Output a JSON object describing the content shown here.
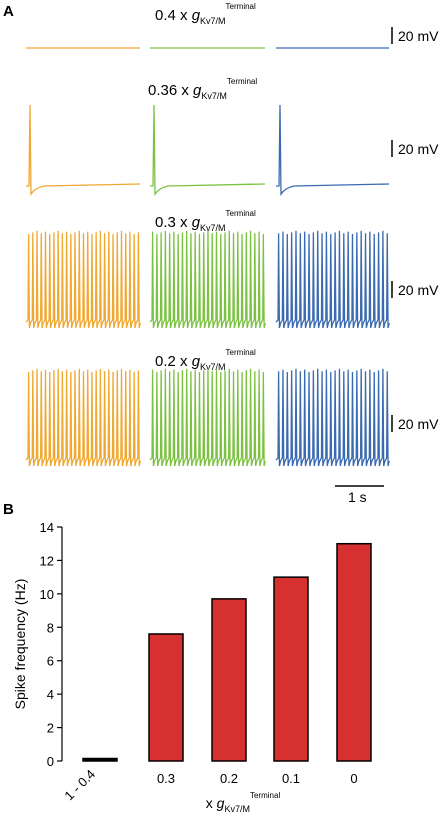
{
  "panel_a": {
    "letter": "A",
    "colors": [
      "#f0a830",
      "#7cc242",
      "#3a6ab0"
    ],
    "rows": [
      {
        "prefix": "0.4 x ",
        "g": "g",
        "sub": "Kv7/M",
        "sup": "Terminal",
        "scale_label": "20 mV",
        "pattern": "flat"
      },
      {
        "prefix": "0.36 x ",
        "g": "g",
        "sub": "Kv7/M",
        "sup": "Terminal",
        "scale_label": "20 mV",
        "pattern": "single"
      },
      {
        "prefix": "0.3 x ",
        "g": "g",
        "sub": "Kv7/M",
        "sup": "Terminal",
        "scale_label": "20 mV",
        "pattern": "train"
      },
      {
        "prefix": "0.2 x ",
        "g": "g",
        "sub": "Kv7/M",
        "sup": "Terminal",
        "scale_label": "20 mV",
        "pattern": "train"
      }
    ],
    "time_scale_label": "1 s"
  },
  "panel_b": {
    "letter": "B",
    "bar_color": "#d63031",
    "chart_data": {
      "type": "bar",
      "categories": [
        "1 - 0.4",
        "0.3",
        "0.2",
        "0.1",
        "0"
      ],
      "values": [
        0.15,
        7.6,
        9.7,
        11.0,
        13.0
      ],
      "ylabel": "Spike frequency (Hz)",
      "xlabel_prefix": "x ",
      "xlabel_g": "g",
      "xlabel_sub": "Kv7/M",
      "xlabel_sup": "Terminal",
      "ylim": [
        0,
        14
      ],
      "yticks": [
        "0",
        "2",
        "4",
        "6",
        "8",
        "10",
        "12",
        "14"
      ],
      "grid": false,
      "legend": "none"
    }
  }
}
